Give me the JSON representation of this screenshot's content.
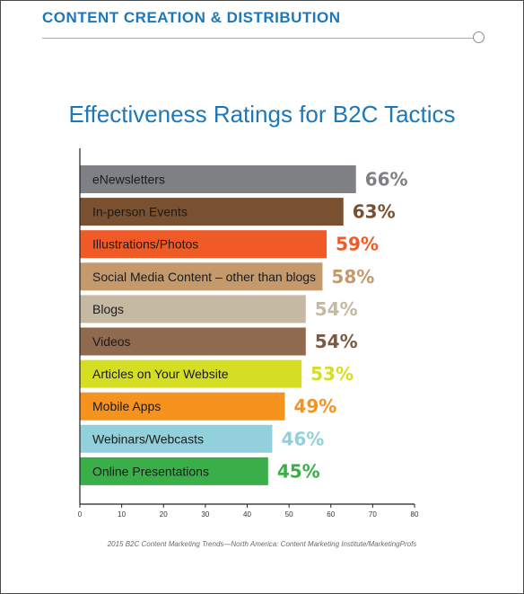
{
  "header": {
    "section_title": "CONTENT CREATION & DISTRIBUTION"
  },
  "colors": {
    "accent": "#1d77b8"
  },
  "chart_data": {
    "type": "bar",
    "orientation": "horizontal",
    "title": "Effectiveness Ratings for B2C Tactics",
    "xlabel": "",
    "ylabel": "",
    "xlim": [
      0,
      80
    ],
    "xticks": [
      0,
      10,
      20,
      30,
      40,
      50,
      60,
      70,
      80
    ],
    "grid": false,
    "categories": [
      "eNewsletters",
      "In-person Events",
      "Illustrations/Photos",
      "Social Media Content – other than blogs",
      "Blogs",
      "Videos",
      "Articles on Your Website",
      "Mobile Apps",
      "Webinars/Webcasts",
      "Online Presentations"
    ],
    "values": [
      66,
      63,
      59,
      58,
      54,
      54,
      53,
      49,
      46,
      45
    ],
    "value_labels": [
      "66%",
      "63%",
      "59%",
      "58%",
      "54%",
      "54%",
      "53%",
      "49%",
      "46%",
      "45%"
    ],
    "bar_colors": [
      "#7f8083",
      "#7a5130",
      "#ef5a26",
      "#c49a6c",
      "#c6b9a3",
      "#8f6a4f",
      "#d6de23",
      "#f6921e",
      "#92d1db",
      "#3aae49"
    ],
    "value_label_colors": [
      "#7f8083",
      "#7a5130",
      "#ef5a26",
      "#c49a6c",
      "#c6b9a3",
      "#7a5a43",
      "#d6de23",
      "#f6921e",
      "#92d1db",
      "#3aae49"
    ],
    "source": "2015 B2C Content Marketing Trends—North America: Content Marketing Institute/MarketingProfs"
  }
}
